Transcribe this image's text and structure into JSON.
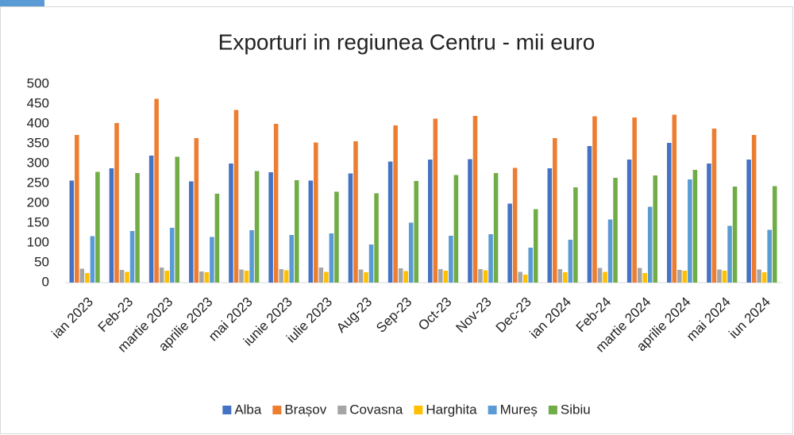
{
  "chart_data": {
    "type": "bar",
    "title": "Exporturi in regiunea Centru - mii euro",
    "categories": [
      "ian 2023",
      "Feb-23",
      "martie 2023",
      "aprilie 2023",
      "mai 2023",
      "iunie 2023",
      "iulie 2023",
      "Aug-23",
      "Sep-23",
      "Oct-23",
      "Nov-23",
      "Dec-23",
      "ian 2024",
      "Feb-24",
      "martie 2024",
      "aprilie 2024",
      "mai 2024",
      "iun 2024"
    ],
    "series": [
      {
        "name": "Alba",
        "color": "#4472c4",
        "values": [
          257,
          288,
          320,
          255,
          300,
          278,
          257,
          275,
          305,
          310,
          311,
          199,
          288,
          344,
          310,
          352,
          300,
          310
        ]
      },
      {
        "name": "Brașov",
        "color": "#ed7d31",
        "values": [
          372,
          402,
          463,
          364,
          435,
          400,
          353,
          356,
          396,
          413,
          420,
          289,
          364,
          419,
          416,
          423,
          388,
          372
        ]
      },
      {
        "name": "Covasna",
        "color": "#a5a5a5",
        "values": [
          35,
          32,
          38,
          28,
          33,
          34,
          38,
          33,
          36,
          34,
          34,
          27,
          34,
          37,
          37,
          32,
          33,
          33
        ]
      },
      {
        "name": "Harghita",
        "color": "#ffc000",
        "values": [
          24,
          27,
          30,
          26,
          30,
          31,
          27,
          26,
          29,
          30,
          31,
          20,
          26,
          27,
          24,
          30,
          30,
          26
        ]
      },
      {
        "name": "Mureș",
        "color": "#5b9bd5",
        "values": [
          117,
          130,
          138,
          115,
          132,
          120,
          124,
          96,
          151,
          118,
          122,
          88,
          108,
          159,
          191,
          260,
          143,
          133
        ]
      },
      {
        "name": "Sibiu",
        "color": "#70ad47",
        "values": [
          279,
          276,
          317,
          224,
          281,
          258,
          229,
          225,
          256,
          271,
          276,
          185,
          240,
          264,
          270,
          284,
          242,
          243
        ]
      }
    ],
    "ylim": [
      0,
      500
    ],
    "yticks": [
      0,
      50,
      100,
      150,
      200,
      250,
      300,
      350,
      400,
      450,
      500
    ],
    "grid": false,
    "legend": "bottom"
  }
}
